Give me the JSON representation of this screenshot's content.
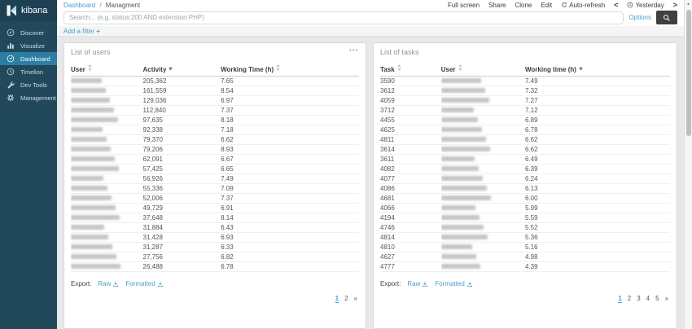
{
  "app": {
    "name": "kibana"
  },
  "colors": {
    "sidebar_bg": "#22485c",
    "sidebar_active": "#2d7ea3",
    "link_blue": "#4a9fc9",
    "panel_title_gray": "#949494",
    "search_button_bg": "#3f3f3f",
    "content_bg": "#e8e8e8"
  },
  "sidebar": {
    "items": [
      {
        "label": "Discover",
        "icon": "compass",
        "active": false
      },
      {
        "label": "Visualize",
        "icon": "bar-chart",
        "active": false
      },
      {
        "label": "Dashboard",
        "icon": "gauge",
        "active": true
      },
      {
        "label": "Timelion",
        "icon": "clock",
        "active": false
      },
      {
        "label": "Dev Tools",
        "icon": "wrench",
        "active": false
      },
      {
        "label": "Management",
        "icon": "gear",
        "active": false
      }
    ]
  },
  "topbar": {
    "breadcrumb": {
      "parent": "Dashboard",
      "separator": "/",
      "current": "Managment"
    },
    "actions": [
      {
        "label": "Full screen"
      },
      {
        "label": "Share"
      },
      {
        "label": "Clone"
      },
      {
        "label": "Edit"
      },
      {
        "label": "Auto-refresh",
        "icon": "refresh"
      }
    ],
    "time_picker": {
      "prev_symbol": "<",
      "icon": "clock",
      "label": "Yesterday",
      "next_symbol": ">"
    }
  },
  "query_bar": {
    "placeholder": "Search... (e.g. status:200 AND extension:PHP)",
    "options_label": "Options"
  },
  "filter_bar": {
    "add_filter_label": "Add a filter",
    "plus_symbol": "+"
  },
  "panels": [
    {
      "title": "List of users",
      "menu_symbol": "•••",
      "user_column_redacted": true,
      "columns": [
        {
          "label": "User",
          "key": "user",
          "sort": "both",
          "redacted": true
        },
        {
          "label": "Activity",
          "key": "activity",
          "sort": "desc"
        },
        {
          "label": "Working Time (h)",
          "key": "working_time",
          "sort": "both"
        }
      ],
      "rows": [
        {
          "activity": "205,362",
          "working_time": "7.65"
        },
        {
          "activity": "161,559",
          "working_time": "8.54"
        },
        {
          "activity": "129,036",
          "working_time": "6.97"
        },
        {
          "activity": "112,840",
          "working_time": "7.37"
        },
        {
          "activity": "97,635",
          "working_time": "8.18"
        },
        {
          "activity": "92,338",
          "working_time": "7.18"
        },
        {
          "activity": "79,370",
          "working_time": "6.62"
        },
        {
          "activity": "79,206",
          "working_time": "8.93"
        },
        {
          "activity": "62,091",
          "working_time": "6.67"
        },
        {
          "activity": "57,425",
          "working_time": "6.65"
        },
        {
          "activity": "56,926",
          "working_time": "7.49"
        },
        {
          "activity": "55,336",
          "working_time": "7.09"
        },
        {
          "activity": "52,006",
          "working_time": "7.37"
        },
        {
          "activity": "49,729",
          "working_time": "6.91"
        },
        {
          "activity": "37,648",
          "working_time": "8.14"
        },
        {
          "activity": "31,884",
          "working_time": "6.43"
        },
        {
          "activity": "31,428",
          "working_time": "6.93"
        },
        {
          "activity": "31,287",
          "working_time": "6.33"
        },
        {
          "activity": "27,756",
          "working_time": "6.82"
        },
        {
          "activity": "26,488",
          "working_time": "6.78"
        }
      ],
      "export_label": "Export:",
      "export_links": [
        {
          "label": "Raw"
        },
        {
          "label": "Formatted"
        }
      ],
      "pagination": {
        "pages": [
          "1",
          "2"
        ],
        "active": "1",
        "next_label": "»"
      }
    },
    {
      "title": "List of tasks",
      "menu_symbol": "",
      "user_column_redacted": true,
      "columns": [
        {
          "label": "Task",
          "key": "task",
          "sort": "both"
        },
        {
          "label": "User",
          "key": "user",
          "sort": "both",
          "redacted": true
        },
        {
          "label": "Working time (h)",
          "key": "working_time",
          "sort": "desc"
        }
      ],
      "rows": [
        {
          "task": "3590",
          "working_time": "7.49"
        },
        {
          "task": "3612",
          "working_time": "7.32"
        },
        {
          "task": "4059",
          "working_time": "7.27"
        },
        {
          "task": "3712",
          "working_time": "7.12"
        },
        {
          "task": "4455",
          "working_time": "6.89"
        },
        {
          "task": "4625",
          "working_time": "6.78"
        },
        {
          "task": "4811",
          "working_time": "6.62"
        },
        {
          "task": "3614",
          "working_time": "6.62"
        },
        {
          "task": "3611",
          "working_time": "6.49"
        },
        {
          "task": "4082",
          "working_time": "6.39"
        },
        {
          "task": "4077",
          "working_time": "6.24"
        },
        {
          "task": "4086",
          "working_time": "6.13"
        },
        {
          "task": "4681",
          "working_time": "6.00"
        },
        {
          "task": "4066",
          "working_time": "5.99"
        },
        {
          "task": "4194",
          "working_time": "5.59"
        },
        {
          "task": "4746",
          "working_time": "5.52"
        },
        {
          "task": "4814",
          "working_time": "5.36"
        },
        {
          "task": "4810",
          "working_time": "5.16"
        },
        {
          "task": "4627",
          "working_time": "4.98"
        },
        {
          "task": "4777",
          "working_time": "4.39"
        }
      ],
      "export_label": "Export:",
      "export_links": [
        {
          "label": "Raw"
        },
        {
          "label": "Formatted"
        }
      ],
      "pagination": {
        "pages": [
          "1",
          "2",
          "3",
          "4",
          "5"
        ],
        "active": "1",
        "next_label": "»"
      }
    }
  ],
  "scrollbar": {
    "up_arrow": "▲"
  }
}
